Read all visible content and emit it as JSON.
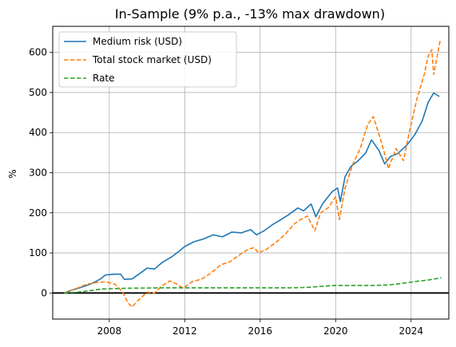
{
  "chart_data": {
    "type": "line",
    "title": "In-Sample (9% p.a., -13% max drawdown)",
    "xlabel": "",
    "ylabel": "%",
    "xlim": [
      2005.0,
      2026.0
    ],
    "ylim": [
      -65,
      665
    ],
    "x_ticks": [
      2008,
      2012,
      2016,
      2020,
      2024
    ],
    "y_ticks": [
      0,
      100,
      200,
      300,
      400,
      500,
      600
    ],
    "grid": true,
    "legend_position": "top-left",
    "zero_line": true,
    "series": [
      {
        "name": "Medium risk (USD)",
        "color": "#1f77b4",
        "dash": "solid",
        "points": [
          [
            2005.6,
            0
          ],
          [
            2006.0,
            7
          ],
          [
            2006.5,
            14
          ],
          [
            2007.0,
            22
          ],
          [
            2007.5,
            34
          ],
          [
            2007.8,
            45
          ],
          [
            2008.3,
            47
          ],
          [
            2008.6,
            47
          ],
          [
            2008.8,
            34
          ],
          [
            2009.2,
            35
          ],
          [
            2009.6,
            48
          ],
          [
            2010.0,
            62
          ],
          [
            2010.4,
            60
          ],
          [
            2010.8,
            76
          ],
          [
            2011.3,
            90
          ],
          [
            2011.7,
            104
          ],
          [
            2012.0,
            116
          ],
          [
            2012.5,
            128
          ],
          [
            2013.0,
            135
          ],
          [
            2013.5,
            145
          ],
          [
            2014.0,
            140
          ],
          [
            2014.5,
            152
          ],
          [
            2015.0,
            150
          ],
          [
            2015.5,
            158
          ],
          [
            2015.8,
            145
          ],
          [
            2016.2,
            155
          ],
          [
            2016.7,
            172
          ],
          [
            2017.0,
            180
          ],
          [
            2017.5,
            195
          ],
          [
            2018.0,
            212
          ],
          [
            2018.3,
            205
          ],
          [
            2018.7,
            222
          ],
          [
            2018.95,
            190
          ],
          [
            2019.3,
            222
          ],
          [
            2019.8,
            252
          ],
          [
            2020.1,
            262
          ],
          [
            2020.25,
            228
          ],
          [
            2020.5,
            290
          ],
          [
            2020.8,
            315
          ],
          [
            2021.2,
            330
          ],
          [
            2021.6,
            350
          ],
          [
            2021.9,
            382
          ],
          [
            2022.3,
            355
          ],
          [
            2022.6,
            322
          ],
          [
            2022.9,
            340
          ],
          [
            2023.3,
            348
          ],
          [
            2023.8,
            370
          ],
          [
            2024.2,
            395
          ],
          [
            2024.6,
            430
          ],
          [
            2024.9,
            475
          ],
          [
            2025.2,
            499
          ],
          [
            2025.5,
            490
          ]
        ]
      },
      {
        "name": "Total stock market (USD)",
        "color": "#ff7f0e",
        "dash": "dashed",
        "points": [
          [
            2005.6,
            0
          ],
          [
            2006.2,
            10
          ],
          [
            2006.8,
            22
          ],
          [
            2007.3,
            26
          ],
          [
            2007.8,
            28
          ],
          [
            2008.3,
            22
          ],
          [
            2008.7,
            3
          ],
          [
            2009.0,
            -25
          ],
          [
            2009.2,
            -35
          ],
          [
            2009.6,
            -15
          ],
          [
            2010.0,
            2
          ],
          [
            2010.4,
            0
          ],
          [
            2010.8,
            18
          ],
          [
            2011.2,
            30
          ],
          [
            2011.6,
            22
          ],
          [
            2011.9,
            12
          ],
          [
            2012.4,
            28
          ],
          [
            2012.9,
            35
          ],
          [
            2013.4,
            50
          ],
          [
            2013.9,
            70
          ],
          [
            2014.4,
            78
          ],
          [
            2014.9,
            95
          ],
          [
            2015.4,
            110
          ],
          [
            2015.7,
            113
          ],
          [
            2015.9,
            100
          ],
          [
            2016.3,
            108
          ],
          [
            2016.8,
            125
          ],
          [
            2017.3,
            145
          ],
          [
            2017.8,
            172
          ],
          [
            2018.1,
            182
          ],
          [
            2018.5,
            192
          ],
          [
            2018.9,
            155
          ],
          [
            2019.2,
            200
          ],
          [
            2019.6,
            212
          ],
          [
            2020.0,
            240
          ],
          [
            2020.2,
            183
          ],
          [
            2020.5,
            262
          ],
          [
            2020.9,
            320
          ],
          [
            2021.3,
            360
          ],
          [
            2021.7,
            420
          ],
          [
            2022.0,
            440
          ],
          [
            2022.4,
            380
          ],
          [
            2022.7,
            330
          ],
          [
            2022.8,
            310
          ],
          [
            2023.2,
            360
          ],
          [
            2023.6,
            330
          ],
          [
            2023.9,
            400
          ],
          [
            2024.3,
            482
          ],
          [
            2024.7,
            545
          ],
          [
            2024.9,
            590
          ],
          [
            2025.1,
            607
          ],
          [
            2025.2,
            545
          ],
          [
            2025.55,
            632
          ]
        ]
      },
      {
        "name": "Rate",
        "color": "#2ca02c",
        "dash": "dashed",
        "points": [
          [
            2005.6,
            0
          ],
          [
            2006.3,
            2
          ],
          [
            2007.0,
            6
          ],
          [
            2007.6,
            10
          ],
          [
            2008.3,
            11
          ],
          [
            2009.0,
            12
          ],
          [
            2011.0,
            13
          ],
          [
            2014.0,
            13
          ],
          [
            2016.0,
            13
          ],
          [
            2017.5,
            13
          ],
          [
            2018.5,
            14
          ],
          [
            2019.3,
            17
          ],
          [
            2020.0,
            19
          ],
          [
            2022.0,
            19
          ],
          [
            2022.8,
            20
          ],
          [
            2023.5,
            24
          ],
          [
            2024.3,
            29
          ],
          [
            2025.0,
            33
          ],
          [
            2025.6,
            38
          ]
        ]
      }
    ]
  }
}
